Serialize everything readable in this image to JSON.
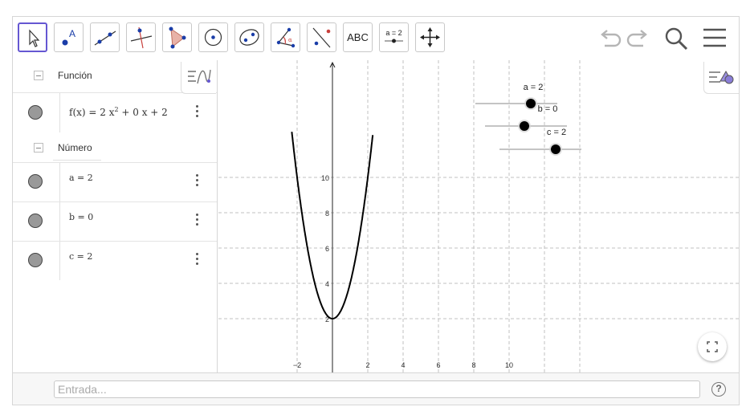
{
  "toolbar": {
    "tools": [
      {
        "name": "move-tool-icon"
      },
      {
        "name": "point-tool-icon",
        "glyph": "A"
      },
      {
        "name": "line-tool-icon"
      },
      {
        "name": "perpendicular-line-tool-icon"
      },
      {
        "name": "polygon-tool-icon"
      },
      {
        "name": "circle-tool-icon"
      },
      {
        "name": "conic-tool-icon"
      },
      {
        "name": "angle-tool-icon"
      },
      {
        "name": "reflect-tool-icon"
      },
      {
        "name": "text-tool-icon",
        "label": "ABC"
      },
      {
        "name": "slider-tool-icon",
        "label": "a = 2"
      },
      {
        "name": "move-graphics-view-tool-icon"
      }
    ],
    "right_icons": [
      "undo-icon",
      "redo-icon",
      "search-icon",
      "menu-icon"
    ]
  },
  "algebra": {
    "groups": [
      {
        "label": "Función",
        "items": [
          {
            "expr_prefix": "f(x)  =  2 x",
            "expr_sup": "2",
            "expr_suffix": " + 0 x + 2"
          }
        ]
      },
      {
        "label": "Número",
        "items": [
          {
            "expr": "a = 2"
          },
          {
            "expr": "b = 0"
          },
          {
            "expr": "c = 2"
          }
        ]
      }
    ]
  },
  "graphics": {
    "x_ticks": [
      "−2",
      "2",
      "4",
      "6",
      "8",
      "10"
    ],
    "y_ticks": [
      "2",
      "4",
      "6",
      "8",
      "10"
    ],
    "sliders": [
      {
        "label": "a = 2",
        "value": 2
      },
      {
        "label": "b = 0",
        "value": 0
      },
      {
        "label": "c = 2",
        "value": 2
      }
    ],
    "function": {
      "a": 2,
      "b": 0,
      "c": 2
    }
  },
  "input": {
    "placeholder": "Entrada..."
  },
  "help": {
    "glyph": "?"
  },
  "colors": {
    "accent": "#6557d2",
    "grid": "#c0c0c0",
    "curve": "#000000",
    "point_fill": "#999999"
  }
}
